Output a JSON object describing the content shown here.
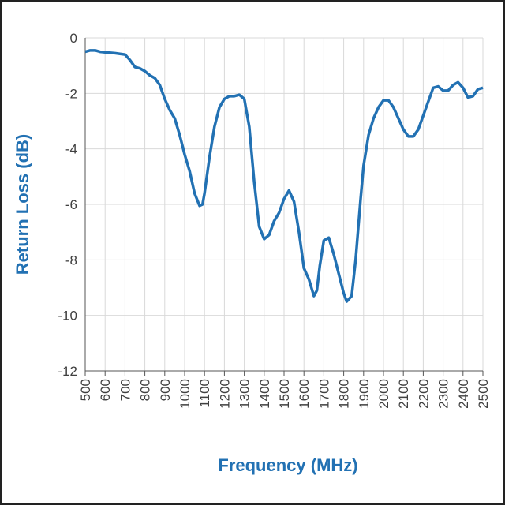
{
  "chart_data": {
    "type": "line",
    "xlabel": "Frequency (MHz)",
    "ylabel": "Return Loss (dB)",
    "x": [
      500,
      525,
      550,
      575,
      600,
      650,
      700,
      725,
      750,
      775,
      800,
      825,
      850,
      875,
      900,
      925,
      950,
      975,
      1000,
      1025,
      1050,
      1075,
      1090,
      1100,
      1125,
      1150,
      1175,
      1200,
      1225,
      1250,
      1275,
      1300,
      1325,
      1350,
      1375,
      1400,
      1425,
      1450,
      1475,
      1500,
      1525,
      1550,
      1575,
      1600,
      1625,
      1650,
      1665,
      1680,
      1700,
      1725,
      1750,
      1775,
      1800,
      1815,
      1840,
      1860,
      1885,
      1900,
      1925,
      1950,
      1975,
      2000,
      2025,
      2050,
      2075,
      2100,
      2125,
      2150,
      2175,
      2200,
      2225,
      2250,
      2275,
      2300,
      2325,
      2350,
      2375,
      2400,
      2425,
      2450,
      2475,
      2500
    ],
    "series": [
      {
        "name": "Return Loss",
        "color": "#2271b3",
        "values": [
          -0.5,
          -0.45,
          -0.45,
          -0.5,
          -0.52,
          -0.55,
          -0.6,
          -0.8,
          -1.05,
          -1.1,
          -1.2,
          -1.35,
          -1.45,
          -1.7,
          -2.2,
          -2.6,
          -2.9,
          -3.5,
          -4.2,
          -4.8,
          -5.6,
          -6.05,
          -6.0,
          -5.6,
          -4.3,
          -3.2,
          -2.5,
          -2.2,
          -2.1,
          -2.1,
          -2.05,
          -2.2,
          -3.2,
          -5.2,
          -6.8,
          -7.25,
          -7.1,
          -6.6,
          -6.3,
          -5.8,
          -5.5,
          -5.9,
          -7.0,
          -8.3,
          -8.7,
          -9.3,
          -9.1,
          -8.2,
          -7.3,
          -7.2,
          -7.8,
          -8.5,
          -9.2,
          -9.5,
          -9.3,
          -8.0,
          -5.8,
          -4.6,
          -3.5,
          -2.9,
          -2.5,
          -2.25,
          -2.25,
          -2.5,
          -2.9,
          -3.3,
          -3.55,
          -3.55,
          -3.3,
          -2.8,
          -2.3,
          -1.8,
          -1.75,
          -1.9,
          -1.9,
          -1.7,
          -1.6,
          -1.8,
          -2.15,
          -2.1,
          -1.85,
          -1.8
        ]
      }
    ],
    "xlim": [
      500,
      2500
    ],
    "xticks": [
      500,
      600,
      700,
      800,
      900,
      1000,
      1100,
      1200,
      1300,
      1400,
      1500,
      1600,
      1700,
      1800,
      1900,
      2000,
      2100,
      2200,
      2300,
      2400,
      2500
    ],
    "ylim": [
      -12,
      0
    ],
    "yticks": [
      -12,
      -10,
      -8,
      -6,
      -4,
      -2,
      0
    ],
    "grid": true
  }
}
